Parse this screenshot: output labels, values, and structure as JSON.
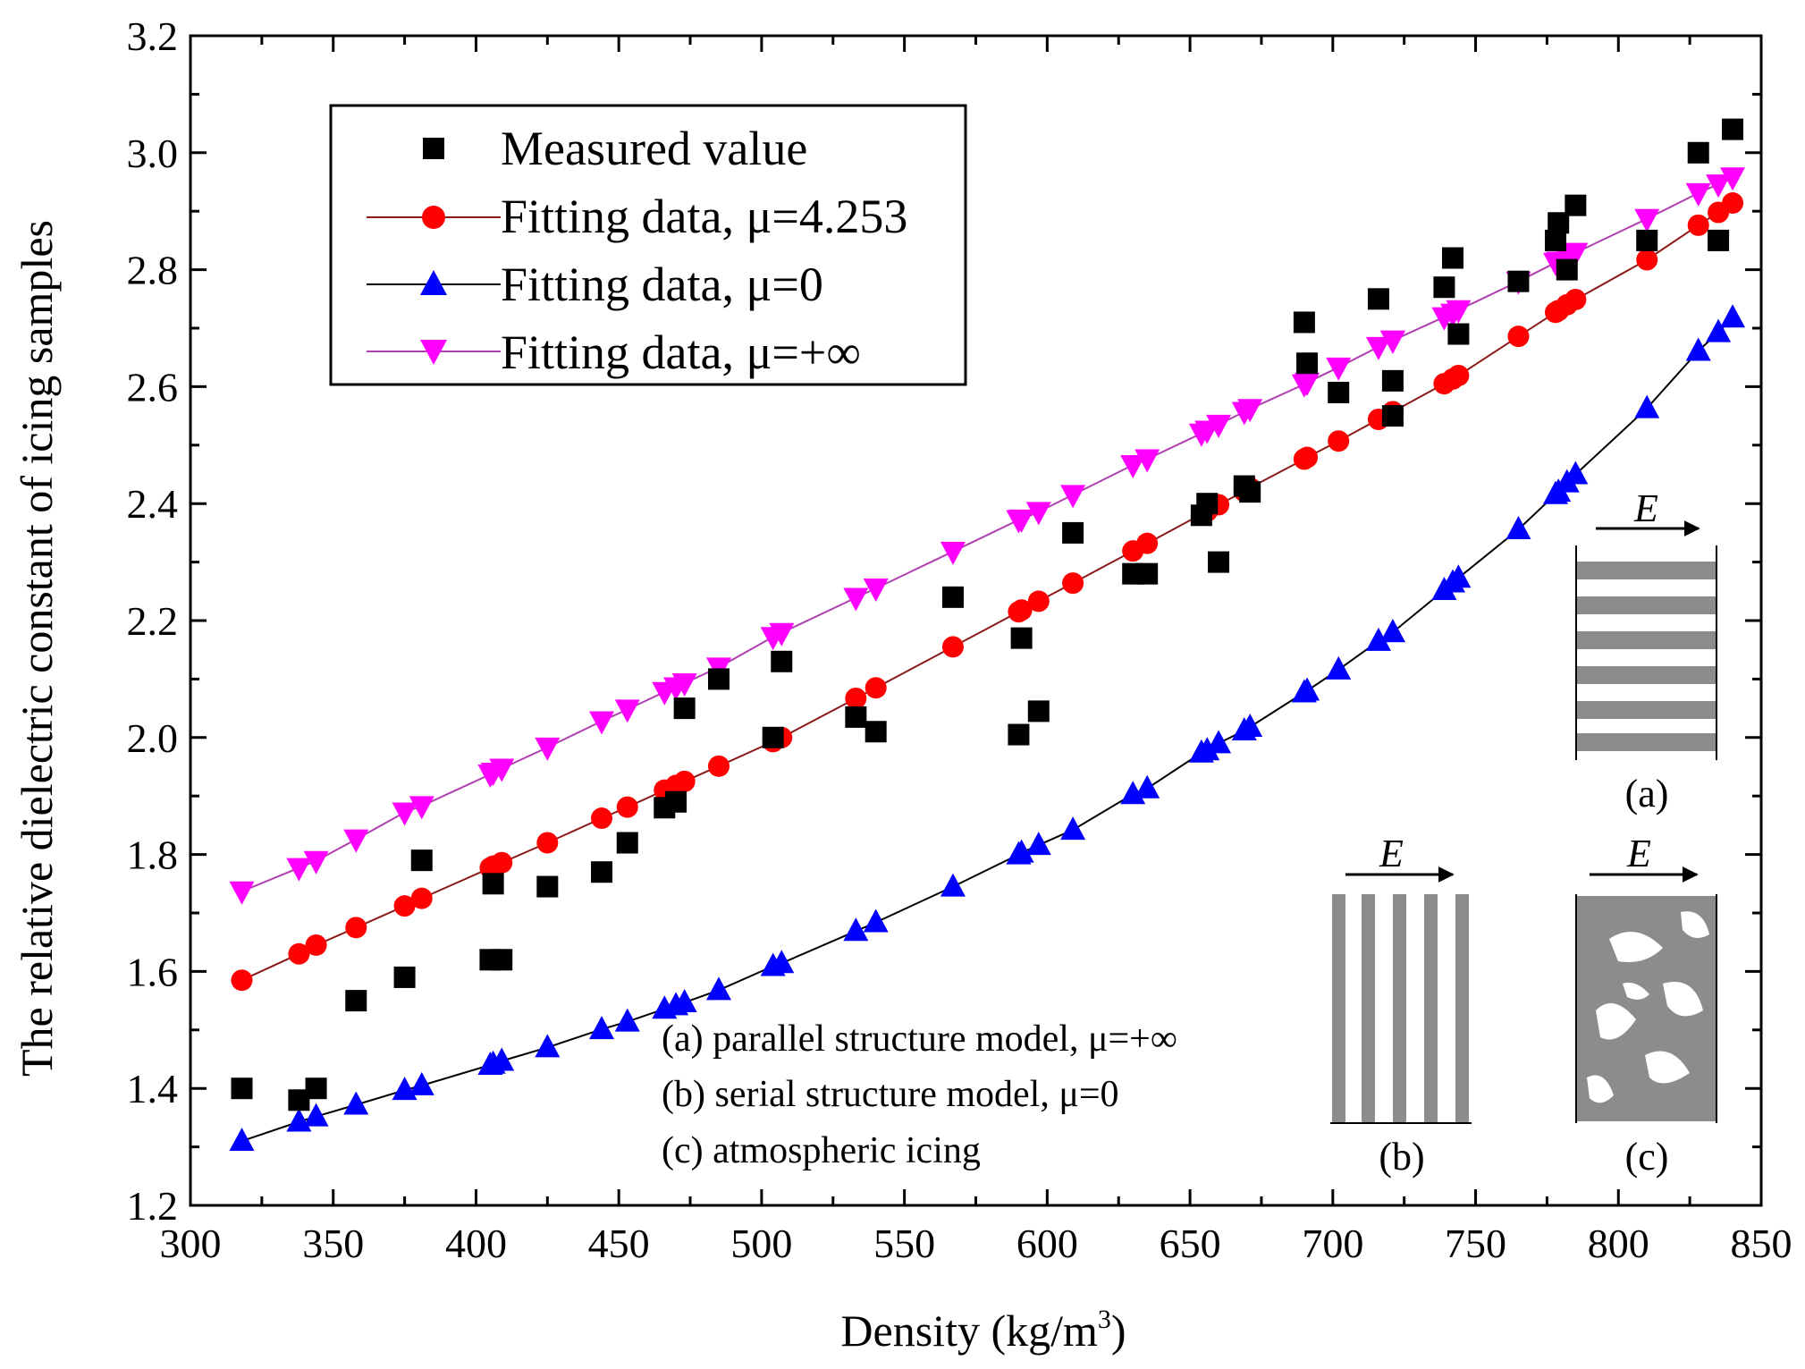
{
  "chart_data": {
    "type": "scatter",
    "title": "",
    "xlabel": "Density (kg/m",
    "xlabel_sup": "3",
    "xlabel_tail": ")",
    "ylabel": "The relative dielectric constant of icing samples",
    "xlim": [
      300,
      850
    ],
    "ylim": [
      1.2,
      3.2
    ],
    "x_ticks": [
      "300",
      "350",
      "400",
      "450",
      "500",
      "550",
      "600",
      "650",
      "700",
      "750",
      "800",
      "850"
    ],
    "y_ticks": [
      "1.2",
      "1.4",
      "1.6",
      "1.8",
      "2.0",
      "2.2",
      "2.4",
      "2.6",
      "2.8",
      "3.0",
      "3.2"
    ],
    "legend_position": "top-left",
    "series": [
      {
        "name": "Measured value",
        "marker": "square",
        "color": "#000000",
        "line": false,
        "x": [
          318,
          338,
          344,
          358,
          375,
          381,
          405,
          406,
          409,
          425,
          444,
          453,
          466,
          470,
          473,
          485,
          504,
          507,
          533,
          540,
          567,
          590,
          591,
          597,
          609,
          630,
          635,
          654,
          656,
          660,
          669,
          671,
          690,
          691,
          702,
          716,
          721,
          721,
          739,
          742,
          744,
          765,
          778,
          779,
          782,
          785,
          810,
          828,
          835,
          840
        ],
        "y": [
          1.4,
          1.38,
          1.4,
          1.55,
          1.59,
          1.79,
          1.62,
          1.75,
          1.62,
          1.745,
          1.77,
          1.82,
          1.88,
          1.89,
          2.05,
          2.1,
          2.0,
          2.13,
          2.035,
          2.01,
          2.24,
          2.005,
          2.17,
          2.045,
          2.35,
          2.28,
          2.28,
          2.38,
          2.4,
          2.3,
          2.43,
          2.42,
          2.71,
          2.64,
          2.59,
          2.75,
          2.61,
          2.55,
          2.77,
          2.82,
          2.69,
          2.78,
          2.85,
          2.88,
          2.8,
          2.91,
          2.85,
          3.0,
          2.85,
          3.04
        ]
      },
      {
        "name": "Fitting data, μ=4.253",
        "marker": "circle",
        "color": "#ff0000",
        "line_color": "#8b1a1a",
        "line": true,
        "x": [
          318,
          338,
          344,
          358,
          375,
          381,
          405,
          406,
          409,
          425,
          444,
          453,
          466,
          470,
          473,
          485,
          504,
          507,
          533,
          540,
          567,
          590,
          591,
          597,
          609,
          630,
          635,
          654,
          656,
          660,
          669,
          671,
          690,
          691,
          702,
          716,
          721,
          721,
          739,
          742,
          744,
          765,
          778,
          779,
          782,
          785,
          810,
          828,
          835,
          840
        ],
        "y": [
          1.585,
          1.63,
          1.645,
          1.675,
          1.712,
          1.725,
          1.777,
          1.78,
          1.786,
          1.82,
          1.862,
          1.881,
          1.91,
          1.918,
          1.925,
          1.951,
          1.993,
          2.0,
          2.067,
          2.085,
          2.155,
          2.215,
          2.218,
          2.233,
          2.264,
          2.319,
          2.332,
          2.382,
          2.387,
          2.398,
          2.421,
          2.427,
          2.476,
          2.479,
          2.507,
          2.544,
          2.557,
          2.557,
          2.605,
          2.613,
          2.619,
          2.686,
          2.727,
          2.73,
          2.74,
          2.749,
          2.817,
          2.876,
          2.898,
          2.914
        ]
      },
      {
        "name": "Fitting data, μ=0",
        "marker": "triangle-up",
        "color": "#0000ff",
        "line_color": "#000000",
        "line": true,
        "x": [
          318,
          338,
          344,
          358,
          375,
          381,
          405,
          406,
          409,
          425,
          444,
          453,
          466,
          470,
          473,
          485,
          504,
          507,
          533,
          540,
          567,
          590,
          591,
          597,
          609,
          630,
          635,
          654,
          656,
          660,
          669,
          671,
          690,
          691,
          702,
          716,
          721,
          721,
          739,
          742,
          744,
          765,
          778,
          779,
          782,
          785,
          810,
          828,
          835,
          840
        ],
        "y": [
          1.31,
          1.343,
          1.352,
          1.372,
          1.397,
          1.405,
          1.44,
          1.442,
          1.447,
          1.47,
          1.501,
          1.514,
          1.536,
          1.542,
          1.547,
          1.568,
          1.609,
          1.614,
          1.669,
          1.684,
          1.745,
          1.8,
          1.803,
          1.816,
          1.842,
          1.903,
          1.913,
          1.974,
          1.978,
          1.99,
          2.012,
          2.018,
          2.077,
          2.08,
          2.116,
          2.165,
          2.18,
          2.18,
          2.252,
          2.265,
          2.273,
          2.356,
          2.416,
          2.42,
          2.436,
          2.45,
          2.563,
          2.661,
          2.693,
          2.718
        ]
      },
      {
        "name": "Fitting data, μ=+∞",
        "marker": "triangle-down",
        "color": "#ff00ff",
        "line_color": "#b03fb0",
        "line": true,
        "x": [
          318,
          338,
          344,
          358,
          375,
          381,
          405,
          406,
          409,
          425,
          444,
          453,
          466,
          470,
          473,
          485,
          504,
          507,
          533,
          540,
          567,
          590,
          591,
          597,
          609,
          630,
          635,
          654,
          656,
          660,
          669,
          671,
          690,
          691,
          702,
          716,
          721,
          721,
          739,
          742,
          744,
          765,
          778,
          779,
          782,
          785,
          810,
          828,
          835,
          840
        ],
        "y": [
          1.737,
          1.777,
          1.789,
          1.826,
          1.872,
          1.883,
          1.937,
          1.94,
          1.947,
          1.983,
          2.028,
          2.048,
          2.078,
          2.086,
          2.093,
          2.12,
          2.172,
          2.179,
          2.239,
          2.255,
          2.318,
          2.372,
          2.373,
          2.386,
          2.415,
          2.466,
          2.476,
          2.52,
          2.525,
          2.535,
          2.557,
          2.562,
          2.604,
          2.607,
          2.633,
          2.668,
          2.679,
          2.679,
          2.719,
          2.725,
          2.731,
          2.78,
          2.812,
          2.814,
          2.822,
          2.829,
          2.887,
          2.931,
          2.946,
          2.958
        ]
      }
    ],
    "annotations": [
      "(a) parallel structure model, μ=+∞",
      "(b) serial structure model, μ=0",
      "(c) atmospheric icing"
    ],
    "insets": {
      "field_label": "E",
      "a": "(a)",
      "b": "(b)",
      "c": "(c)"
    }
  }
}
